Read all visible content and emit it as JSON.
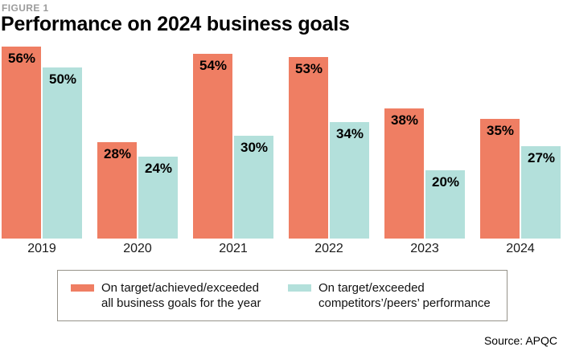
{
  "figure_label": "FIGURE 1",
  "title": "Performance on 2024 business goals",
  "source": "Source: APQC",
  "colors": {
    "series1": "#ef7e63",
    "series2": "#b3e0db",
    "figure_label_gray": "#9b9b9b",
    "legend_border": "#96938a",
    "value_label": "#000000"
  },
  "chart_data": {
    "type": "bar",
    "title": "Performance on 2024 business goals",
    "categories": [
      "2019",
      "2020",
      "2021",
      "2022",
      "2023",
      "2024"
    ],
    "series": [
      {
        "name": "On target/achieved/exceeded all business goals for the year",
        "color": "#ef7e63",
        "values": [
          56,
          28,
          54,
          53,
          38,
          35
        ]
      },
      {
        "name": "On target/exceeded competitors’/peers’ performance",
        "color": "#b3e0db",
        "values": [
          50,
          24,
          30,
          34,
          20,
          27
        ]
      }
    ],
    "value_format": "percent",
    "value_labels_inside_bars": true,
    "xlabel": "",
    "ylabel": "",
    "ylim": [
      0,
      56
    ],
    "grid": false,
    "axis_lines": false,
    "legend_position": "bottom-boxed"
  },
  "legend": {
    "entries": [
      {
        "line1": "On target/achieved/exceeded",
        "line2": "all business goals for the year"
      },
      {
        "line1": "On target/exceeded",
        "line2": "competitors’/peers’ performance"
      }
    ]
  }
}
